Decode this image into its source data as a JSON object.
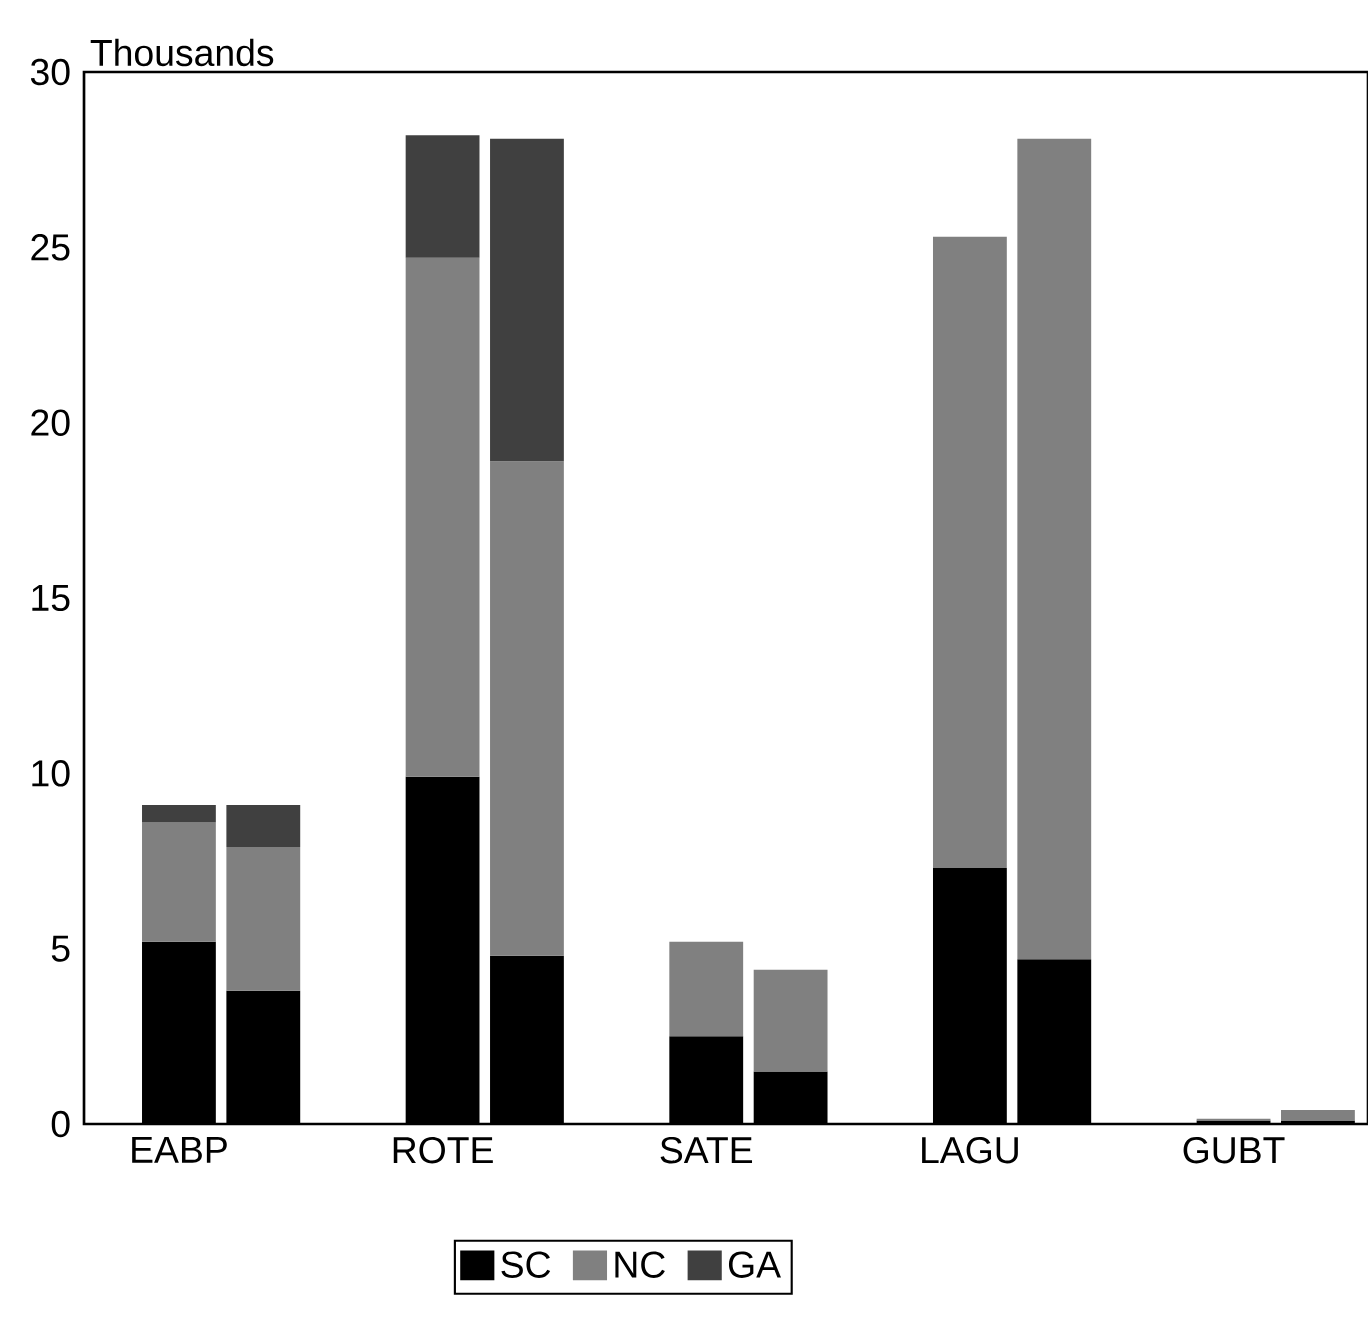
{
  "chart_data": {
    "type": "bar",
    "ylabel": "Thousands",
    "categories": [
      "EABP",
      null,
      "ROTE",
      null,
      "SATE",
      null,
      "LAGU",
      null,
      "GUBT",
      null
    ],
    "stacked": true,
    "series": [
      {
        "name": "SC",
        "color": "#000000",
        "values": [
          5.2,
          3.8,
          9.9,
          4.8,
          2.5,
          1.5,
          7.3,
          4.7,
          0.1,
          0.1
        ]
      },
      {
        "name": "NC",
        "color": "#808080",
        "values": [
          3.4,
          4.1,
          14.8,
          14.1,
          2.7,
          2.9,
          18.0,
          23.4,
          0.05,
          0.3
        ]
      },
      {
        "name": "GA",
        "color": "#404040",
        "values": [
          0.5,
          1.2,
          3.5,
          9.2,
          0,
          0,
          0,
          0,
          0,
          0
        ]
      }
    ],
    "ylim": [
      0,
      30
    ],
    "yticks": [
      0,
      5,
      10,
      15,
      20,
      25,
      30
    ],
    "grid": false,
    "legend": "bottom"
  }
}
